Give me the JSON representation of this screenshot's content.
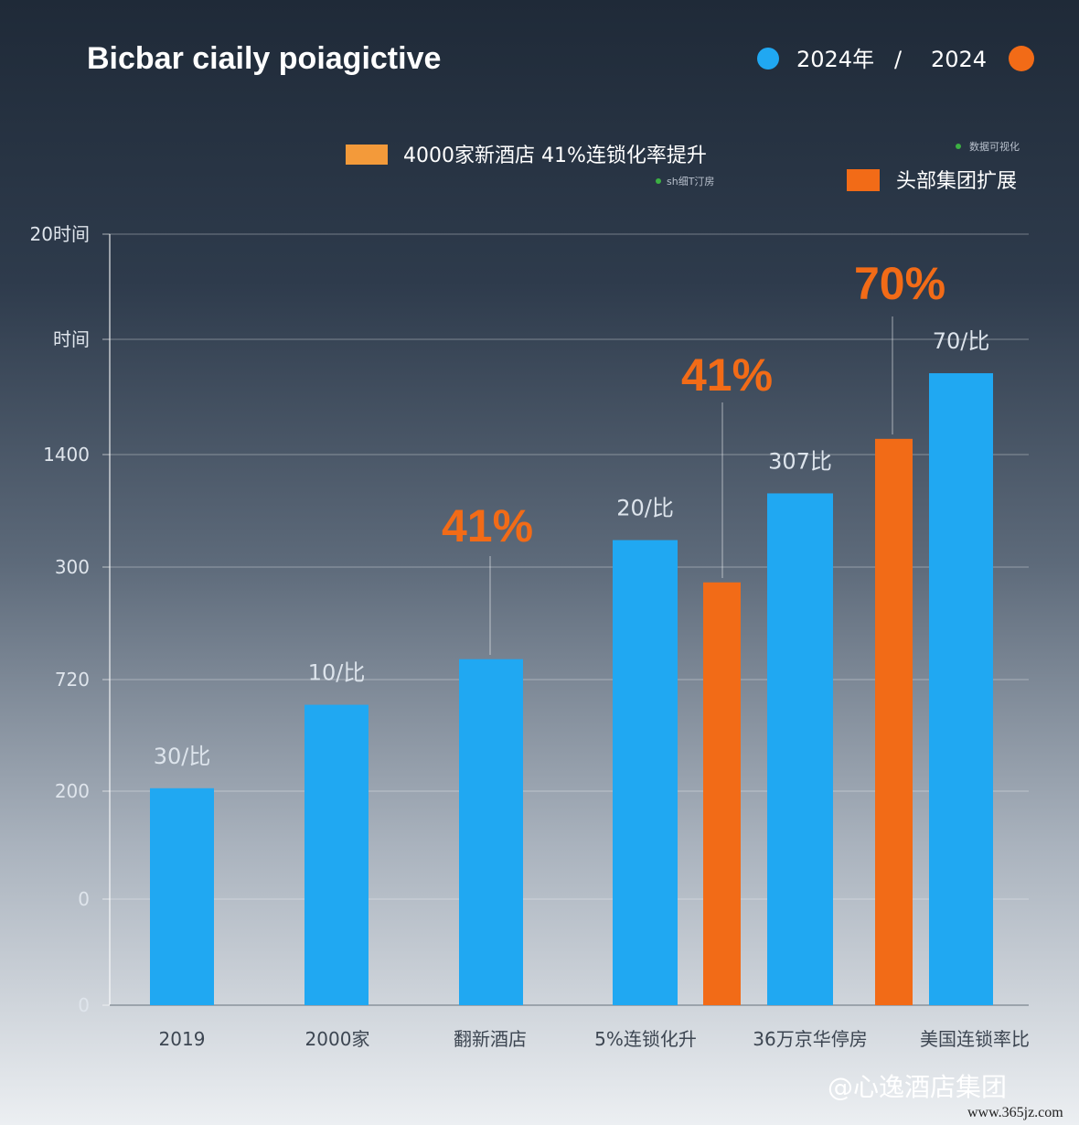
{
  "title": "Bicbar ciaily poiagictive",
  "colors": {
    "blue": "#20a8f2",
    "orange": "#f26b17",
    "orange_light": "#f39a3a",
    "green": "#3cb043"
  },
  "legend": {
    "blue_label": "2024年",
    "divider": "/",
    "orange_label": "2024"
  },
  "sub_legend": {
    "item1": "4000家新酒店 41%连锁化率提升",
    "item1_note": "sh细T汀房",
    "item2_note": "数据可视化",
    "item2": "头部集团扩展"
  },
  "chart_data": {
    "type": "bar",
    "y_ticks": [
      "0",
      "0",
      "200",
      "720",
      "300",
      "1400",
      "时间",
      "20时间"
    ],
    "categories": [
      "2019",
      "2000家",
      "翻新酒店",
      "5%连锁化升",
      "36万京华停房",
      "美国连锁率比"
    ],
    "bars": [
      {
        "series": "blue",
        "category": "2019",
        "value": 1.95,
        "label": "30/比"
      },
      {
        "series": "blue",
        "category": "2000家",
        "value": 2.7,
        "label": "10/比"
      },
      {
        "series": "blue",
        "category": "翻新酒店",
        "value": 3.11,
        "label": ""
      },
      {
        "series": "blue",
        "category": "5%连锁化升",
        "value": 4.18,
        "label": "20/比"
      },
      {
        "series": "orange",
        "category": "5%连锁化升",
        "value": 3.8,
        "label": ""
      },
      {
        "series": "blue",
        "category": "36万京华停房",
        "value": 4.6,
        "label": "307比"
      },
      {
        "series": "orange",
        "category": "36万京华停房",
        "value": 5.09,
        "label": ""
      },
      {
        "series": "blue",
        "category": "美国连锁率比",
        "value": 5.68,
        "label": "70/比"
      }
    ],
    "callouts": [
      {
        "category": "翻新酒店",
        "label": "41%"
      },
      {
        "category": "5%连锁化升",
        "label": "41%"
      },
      {
        "category": "36万京华停房",
        "label": "70%"
      }
    ],
    "ylim": [
      0,
      6.93
    ],
    "grid": true
  },
  "watermark": "@心逸酒店集团",
  "url": "www.365jz.com"
}
